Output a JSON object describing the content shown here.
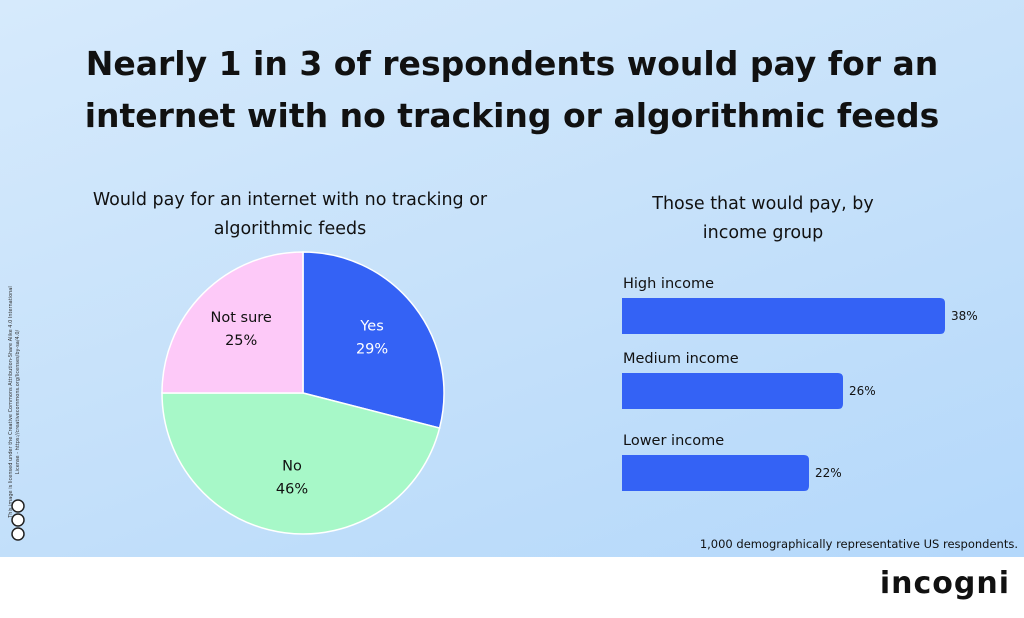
{
  "title": "Nearly 1 in 3 of respondents would pay for an internet with no tracking or algorithmic feeds",
  "chart_data": [
    {
      "type": "pie",
      "title": "Would pay for an internet with no tracking or algorithmic feeds",
      "categories": [
        "Yes",
        "No",
        "Not sure"
      ],
      "values": [
        29,
        46,
        25
      ],
      "value_labels": [
        "29%",
        "46%",
        "25%"
      ],
      "colors": [
        "#3462f5",
        "#a7f8c8",
        "#fdc9f8"
      ]
    },
    {
      "type": "hbar",
      "title": "Those that would pay, by income group",
      "categories": [
        "High income",
        "Medium income",
        "Lower income"
      ],
      "values": [
        38,
        26,
        22
      ],
      "value_labels": [
        "38%",
        "26%",
        "22%"
      ],
      "color": "#3462f5"
    }
  ],
  "footnote": "1,000 demographically representative US respondents.",
  "logo": "incogni",
  "license": "This image is licensed under the Creative Commons Attribution-Share Alike 4.0 International License - https://creativecommons.org/licenses/by-sa/4.0/"
}
